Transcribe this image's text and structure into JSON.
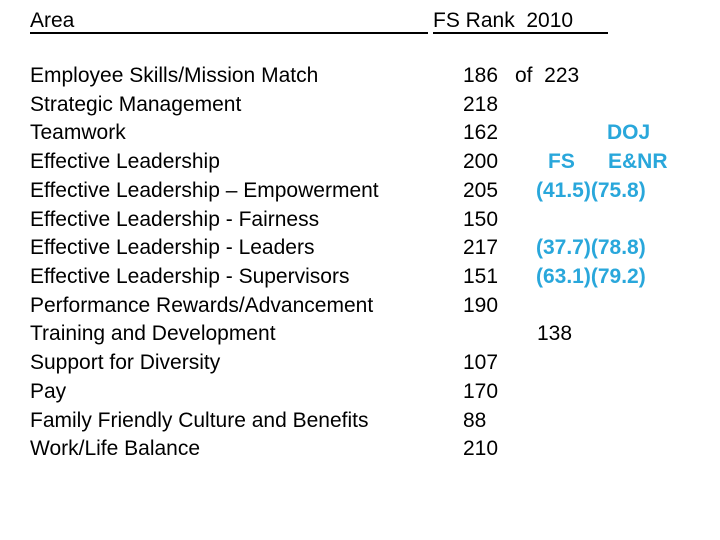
{
  "slide": {
    "header": {
      "area_label": "Area",
      "rank_label": "FS Rank  2010"
    },
    "annotation": {
      "doj_label": "DOJ",
      "fs_label": "FS",
      "enr_label": "E&NR"
    },
    "rows": [
      {
        "area": "Employee Skills/Mission Match",
        "rank": "186",
        "extra": "of  223"
      },
      {
        "area": "Strategic Management",
        "rank": "218"
      },
      {
        "area": "Teamwork",
        "rank": "162"
      },
      {
        "area": "Effective Leadership",
        "rank": "200"
      },
      {
        "area": "Effective Leadership – Empowerment",
        "rank": "205",
        "note": "(41.5)(75.8)"
      },
      {
        "area": "Effective Leadership - Fairness",
        "rank": "150"
      },
      {
        "area": "Effective Leadership - Leaders",
        "rank": "217",
        "note": "(37.7)(78.8)"
      },
      {
        "area": "Effective Leadership - Supervisors",
        "rank": "151",
        "note": "(63.1)(79.2)"
      },
      {
        "area": "Performance Rewards/Advancement",
        "rank": "190"
      },
      {
        "area": "Training and Development",
        "rank": "",
        "alt": "138"
      },
      {
        "area": "Support for Diversity",
        "rank": "107"
      },
      {
        "area": "Pay",
        "rank": "170"
      },
      {
        "area": "Family Friendly Culture and Benefits",
        "rank": "88"
      },
      {
        "area": "Work/Life Balance",
        "rank": "210"
      }
    ]
  },
  "colors": {
    "text": "#000000",
    "accent_blue": "#29A7DB",
    "background": "#FFFFFF"
  },
  "layout_meta": {
    "row_count": "14"
  }
}
